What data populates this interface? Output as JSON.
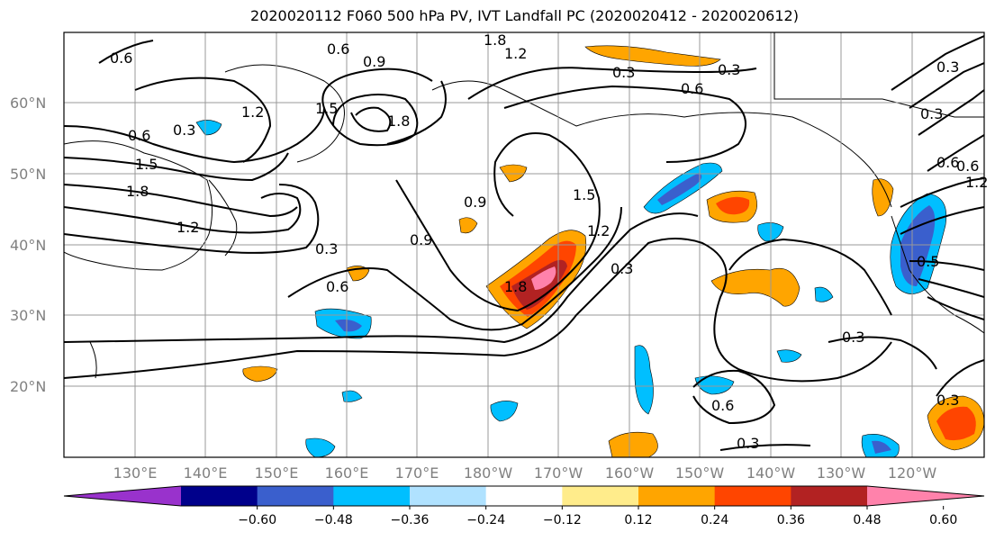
{
  "title": "2020020112 F060 500 hPa PV, IVT Landfall PC (2020020412 - 2020020612)",
  "map": {
    "lat_labels": [
      "60°N",
      "50°N",
      "40°N",
      "30°N",
      "20°N"
    ],
    "lon_labels": [
      "130°E",
      "140°E",
      "150°E",
      "160°E",
      "170°E",
      "180°W",
      "170°W",
      "160°W",
      "150°W",
      "140°W",
      "130°W",
      "120°W"
    ],
    "contour_labels": [
      "0.6",
      "0.6",
      "0.9",
      "1.8",
      "1.2",
      "0.3",
      "0.3",
      "0.6",
      "0.3",
      "1.2",
      "1.5",
      "1.8",
      "0.6",
      "0.3",
      "1.5",
      "1.8",
      "1.2",
      "0.9",
      "0.6",
      "0.3",
      "0.9",
      "1.5",
      "1.2",
      "1.8",
      "0.3",
      "0.6",
      "0.6",
      "0.3",
      "0.3",
      "0.6",
      "1.2",
      "0.5",
      "0.3",
      "0.3"
    ]
  },
  "colorbar": {
    "ticks": [
      "−0.60",
      "−0.48",
      "−0.36",
      "−0.24",
      "−0.12",
      "0.12",
      "0.24",
      "0.36",
      "0.48",
      "0.60"
    ],
    "colors": [
      "#9932cc",
      "#00008b",
      "#3a5fcd",
      "#00bfff",
      "#b0e2ff",
      "#ffffff",
      "#ffec8b",
      "#ffa500",
      "#ff4500",
      "#b22222",
      "#ff82ab"
    ]
  }
}
